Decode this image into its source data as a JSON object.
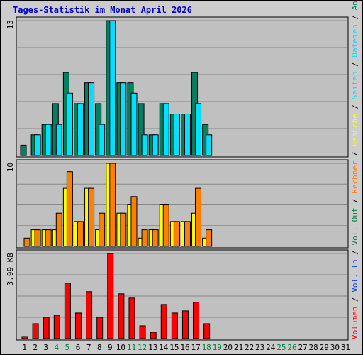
{
  "chart_data": {
    "type": "bar",
    "title": "Tages-Statistik im Monat April 2026",
    "x_labels": [
      "1",
      "2",
      "3",
      "4",
      "5",
      "6",
      "7",
      "8",
      "9",
      "10",
      "11",
      "12",
      "13",
      "14",
      "15",
      "16",
      "17",
      "18",
      "19",
      "20",
      "21",
      "22",
      "23",
      "24",
      "25",
      "26",
      "27",
      "28",
      "29",
      "30",
      "31"
    ],
    "weekend_days": [
      4,
      5,
      11,
      12,
      18,
      19,
      25,
      26
    ],
    "colors": {
      "frame_bg": "#cccccc",
      "plot_bg": "#c0c0c0",
      "grid": "#888888",
      "title": "#0000cc",
      "tick_normal": "#000000",
      "tick_weekend": "#008040",
      "anfragen": "#008060",
      "dateien": "#00e0ff",
      "seiten": "#00e0ff",
      "besuche": "#ffff00",
      "rechner": "#ff8000",
      "vol_out": "#008040",
      "vol_in": "#0040ff",
      "volumen": "#ff0000",
      "separator": "#000000"
    },
    "panels": [
      {
        "name": "hits",
        "ymax_label": "13",
        "ymax": 13,
        "series": [
          {
            "key": "anfragen",
            "values": [
              1,
              2,
              3,
              5,
              8,
              5,
              7,
              5,
              13,
              7,
              7,
              5,
              2,
              5,
              4,
              4,
              8,
              3
            ]
          },
          {
            "key": "dateien",
            "values": [
              0,
              2,
              3,
              3,
              6,
              5,
              7,
              3,
              13,
              7,
              6,
              2,
              2,
              5,
              4,
              4,
              5,
              2
            ]
          }
        ]
      },
      {
        "name": "visits",
        "ymax_label": "10",
        "ymax": 10,
        "series": [
          {
            "key": "besuche",
            "values": [
              0,
              2,
              2,
              2,
              7,
              3,
              7,
              2,
              10,
              4,
              5,
              1,
              2,
              5,
              3,
              3,
              4,
              1
            ]
          },
          {
            "key": "rechner",
            "values": [
              1,
              2,
              2,
              4,
              9,
              3,
              7,
              4,
              10,
              4,
              6,
              2,
              2,
              5,
              3,
              3,
              7,
              2
            ]
          }
        ]
      },
      {
        "name": "volume",
        "ymax_label": "3.99 KB",
        "ymax": 3.99,
        "series": [
          {
            "key": "volumen",
            "values": [
              0.1,
              0.7,
              1.0,
              1.1,
              2.6,
              1.2,
              2.2,
              1.0,
              3.99,
              2.1,
              1.9,
              0.6,
              0.3,
              1.6,
              1.2,
              1.3,
              1.7,
              0.7
            ]
          }
        ]
      }
    ],
    "legend": [
      {
        "key": "volumen",
        "label": "Volumen"
      },
      {
        "key": "separator",
        "label": " / "
      },
      {
        "key": "vol_in",
        "label": "Vol. In"
      },
      {
        "key": "separator",
        "label": " / "
      },
      {
        "key": "vol_out",
        "label": "Vol. Out"
      },
      {
        "key": "separator",
        "label": " / "
      },
      {
        "key": "rechner",
        "label": "Rechner"
      },
      {
        "key": "separator",
        "label": " / "
      },
      {
        "key": "besuche",
        "label": "Besuche"
      },
      {
        "key": "separator",
        "label": " / "
      },
      {
        "key": "seiten",
        "label": "Seiten"
      },
      {
        "key": "separator",
        "label": " / "
      },
      {
        "key": "dateien",
        "label": "Dateien"
      },
      {
        "key": "separator",
        "label": " / "
      },
      {
        "key": "anfragen",
        "label": "Anfragen"
      }
    ]
  }
}
